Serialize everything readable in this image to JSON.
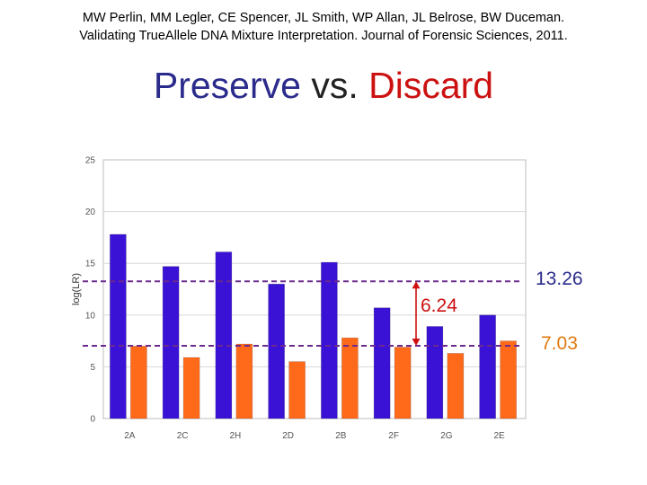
{
  "citation": {
    "line1": "MW Perlin, MM Legler, CE Spencer, JL Smith, WP Allan, JL Belrose, BW Duceman.",
    "line2": "Validating TrueAllele DNA Mixture Interpretation. Journal of Forensic Sciences, 2011."
  },
  "title": {
    "part1": "Preserve",
    "part2": " vs. ",
    "part3": "Discard"
  },
  "colors": {
    "title_preserve": "#2b2b8c",
    "title_discard": "#cc1111",
    "preserve_bar": "#3a12d6",
    "discard_bar": "#ff6a1a",
    "reference_line": "#6b2a8c",
    "difference_arrow": "#d01010",
    "label_13_26": "#2b2b8c",
    "label_7_03": "#e07a10",
    "label_6_24": "#cc1111"
  },
  "chart_data": {
    "type": "bar",
    "ylabel": "log(LR)",
    "xlabel": "",
    "ylim": [
      0,
      25
    ],
    "yticks": [
      0,
      5,
      10,
      15,
      20,
      25
    ],
    "grid": true,
    "categories": [
      "2A",
      "2C",
      "2H",
      "2D",
      "2B",
      "2F",
      "2G",
      "2E"
    ],
    "series": [
      {
        "values": [
          17.8,
          14.7,
          16.1,
          13.0,
          15.1,
          10.7,
          8.9,
          10.0
        ]
      },
      {
        "values": [
          7.0,
          5.9,
          7.2,
          5.5,
          7.8,
          6.9,
          6.3,
          7.5
        ]
      }
    ],
    "reference_lines": [
      {
        "value": 13.26,
        "label": "13.26"
      },
      {
        "value": 7.03,
        "label": "7.03"
      }
    ],
    "difference_annotation": {
      "from": 7.03,
      "to": 13.26,
      "label": "6.24"
    }
  }
}
